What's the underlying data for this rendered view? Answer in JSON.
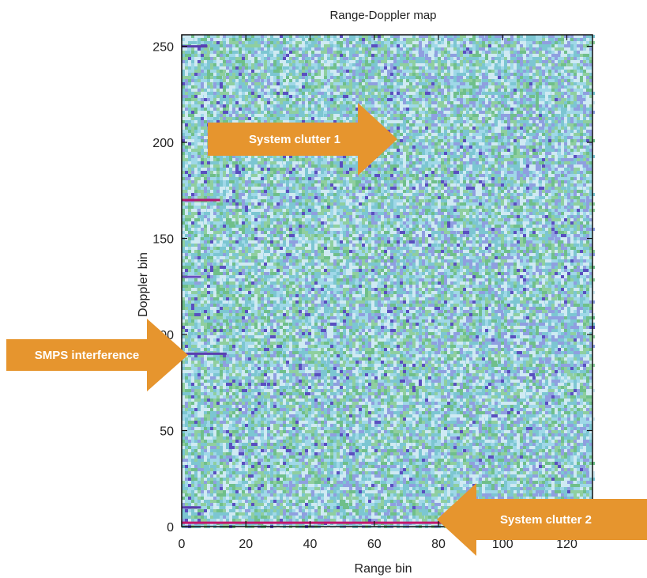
{
  "chart_data": {
    "type": "heatmap",
    "title": "Range-Doppler map",
    "xlabel": "Range bin",
    "ylabel": "Doppler bin",
    "xlim": [
      0,
      128
    ],
    "ylim": [
      0,
      256
    ],
    "x_ticks": [
      0,
      20,
      40,
      60,
      80,
      100,
      120
    ],
    "y_ticks": [
      0,
      50,
      100,
      150,
      200,
      250
    ],
    "colormap": [
      "#cfeaf3",
      "#9fd8e8",
      "#7cc6d2",
      "#8fcf9f",
      "#6fbf8a",
      "#8f9fe0",
      "#5a4fc0"
    ],
    "features": [
      {
        "name": "System clutter 2",
        "type": "horizontal_line",
        "doppler_bin": 2,
        "range_bins": [
          0,
          128
        ],
        "color": "#c0186c"
      },
      {
        "name": "SMPS interference",
        "type": "horizontal_line",
        "doppler_bin": 90,
        "range_bins": [
          0,
          14
        ],
        "color": "#5a3fb0"
      },
      {
        "name": "spur-170",
        "type": "horizontal_line",
        "doppler_bin": 170,
        "range_bins": [
          0,
          12
        ],
        "color": "#b01870"
      },
      {
        "name": "spur-250",
        "type": "horizontal_line",
        "doppler_bin": 250,
        "range_bins": [
          0,
          8
        ],
        "color": "#5a3fb0"
      },
      {
        "name": "spur-130",
        "type": "horizontal_line",
        "doppler_bin": 130,
        "range_bins": [
          0,
          6
        ],
        "color": "#6a4fc0"
      },
      {
        "name": "spur-10",
        "type": "horizontal_line",
        "doppler_bin": 10,
        "range_bins": [
          0,
          6
        ],
        "color": "#5a3fb0"
      }
    ],
    "annotations": [
      {
        "text": "System clutter 1",
        "points_to": [
          68,
          200
        ],
        "direction": "right"
      },
      {
        "text": "SMPS interference",
        "points_to": [
          2,
          90
        ],
        "direction": "right"
      },
      {
        "text": "System clutter 2",
        "points_to": [
          80,
          3
        ],
        "direction": "left"
      }
    ],
    "grid": false
  }
}
